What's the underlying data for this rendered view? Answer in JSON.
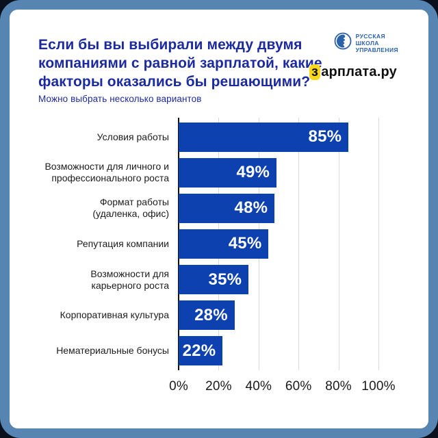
{
  "header": {
    "title": "Если бы вы выбирали между двумя\nкомпаниями с равной зарплатой, какие\nфакторы оказались бы решающими?",
    "subtitle": "Можно выбрать несколько вариантов"
  },
  "logos": {
    "rsu": {
      "text": "РУССКАЯ\nШКОЛА\nУПРАВЛЕНИЯ",
      "color": "#2b62a8"
    },
    "zarplata": {
      "first_letter": "з",
      "rest": "арплата.ру",
      "highlight_color": "#fcd81c"
    }
  },
  "chart_data": {
    "type": "bar",
    "orientation": "horizontal",
    "title": "Если бы вы выбирали между двумя компаниями с равной зарплатой, какие факторы оказались бы решающими?",
    "subtitle": "Можно выбрать несколько вариантов",
    "categories": [
      "Условия работы",
      "Возможности для личного и\nпрофессионального роста",
      "Формат работы\n(удаленка, офис)",
      "Репутация компании",
      "Возможности для\nкарьерного роста",
      "Корпоративная культура",
      "Нематериальные бонусы"
    ],
    "values": [
      85,
      49,
      48,
      45,
      35,
      28,
      22
    ],
    "value_labels": [
      "85%",
      "49%",
      "48%",
      "45%",
      "35%",
      "28%",
      "22%"
    ],
    "x_tick_values": [
      0,
      20,
      40,
      60,
      80,
      100
    ],
    "x_tick_labels": [
      "0%",
      "20%",
      "40%",
      "60%",
      "80%",
      "100%"
    ],
    "xlim": [
      0,
      100
    ],
    "grid": true,
    "legend": false,
    "bar_color": "#0e41b0"
  },
  "colors": {
    "outer_background": "#0b101f",
    "frame": "#5685b2",
    "card": "#ffffff",
    "title_text": "#1c2aa0",
    "bar": "#0e41b0",
    "bar_value_text": "#ffffff",
    "gridline": "#d9d9d9",
    "axis_line": "#111111",
    "category_text": "#1c1c1c",
    "tick_text": "#1a1a1a"
  }
}
